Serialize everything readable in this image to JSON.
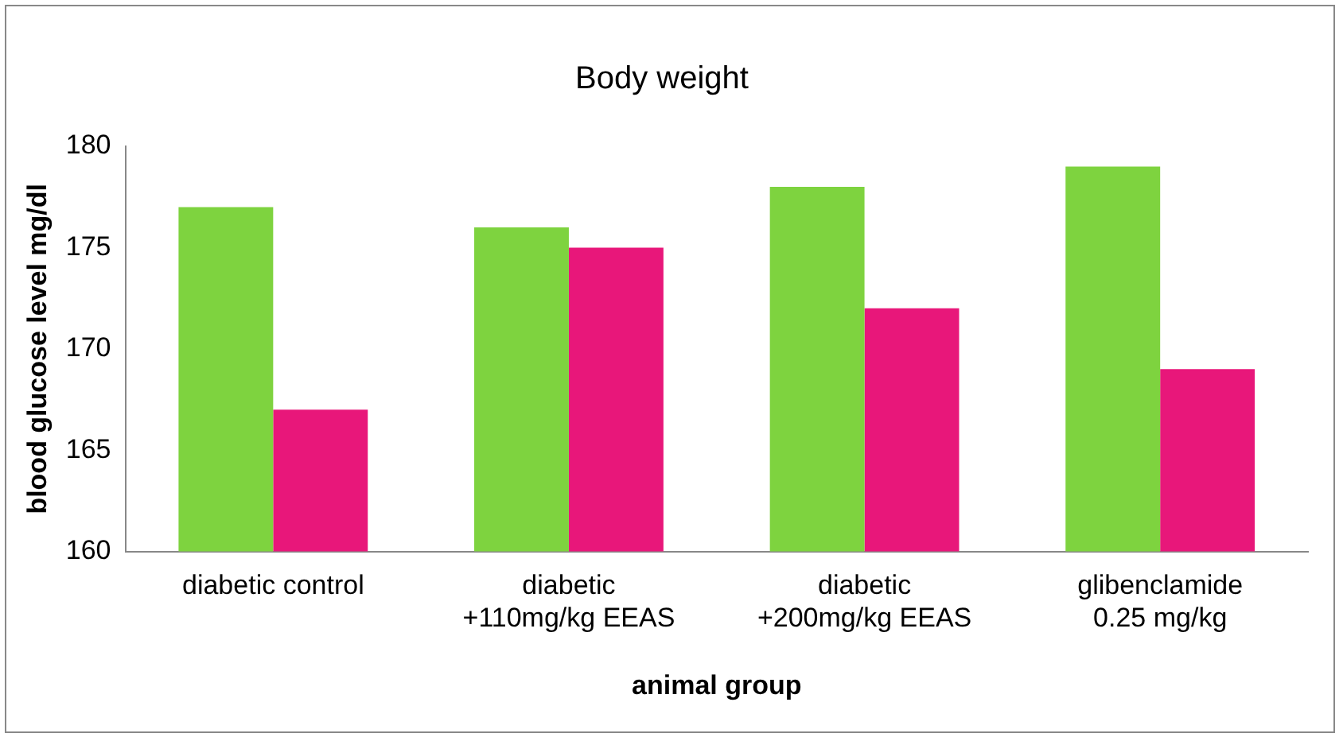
{
  "chart_data": {
    "type": "bar",
    "title": "Body weight",
    "xlabel": "animal group",
    "ylabel": "blood glucose level mg/dl",
    "categories": [
      "diabetic control",
      "diabetic\n+110mg/kg EEAS",
      "diabetic\n+200mg/kg EEAS",
      "glibenclamide\n0.25 mg/kg"
    ],
    "series": [
      {
        "color": "#7ed33f",
        "values": [
          177,
          176,
          178,
          179
        ]
      },
      {
        "color": "#e8177a",
        "values": [
          167,
          175,
          172,
          169
        ]
      }
    ],
    "ylim": [
      160,
      180
    ],
    "yticks": [
      160,
      165,
      170,
      175,
      180
    ],
    "grid": false,
    "legend": false
  }
}
